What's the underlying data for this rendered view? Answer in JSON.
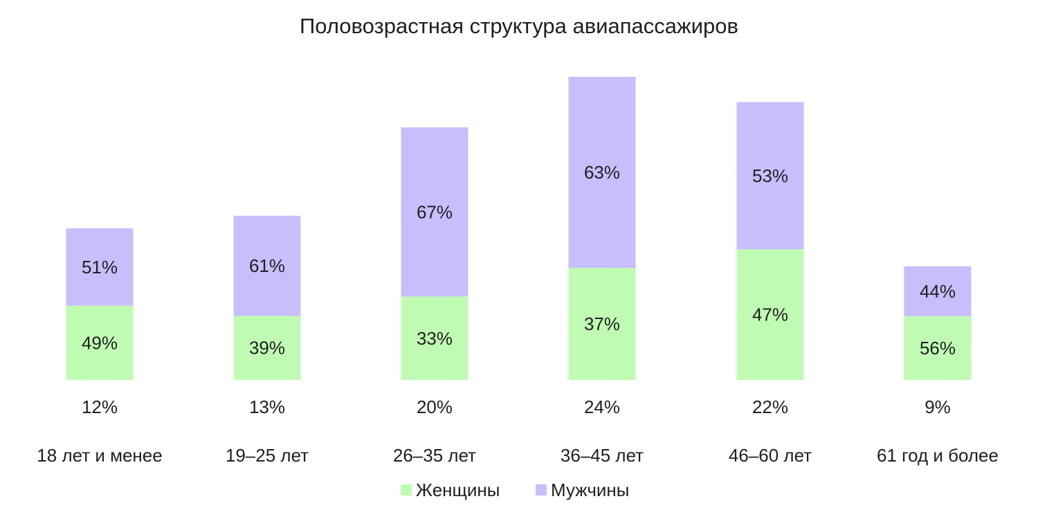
{
  "chart_data": {
    "type": "bar",
    "stacked": true,
    "title": "Половозрастная структура авиапассажиров",
    "xlabel": "",
    "ylabel": "",
    "grid": false,
    "legend_position": "bottom",
    "categories": [
      "18 лет и менее",
      "19–25 лет",
      "26–35 лет",
      "36–45 лет",
      "46–60 лет",
      "61 год и более"
    ],
    "category_share": [
      12,
      13,
      20,
      24,
      22,
      9
    ],
    "category_share_labels": [
      "12%",
      "13%",
      "20%",
      "24%",
      "22%",
      "9%"
    ],
    "series": [
      {
        "name": "Женщины",
        "color": "#c0fbb4",
        "values": [
          49,
          39,
          33,
          37,
          47,
          56
        ],
        "labels": [
          "49%",
          "39%",
          "33%",
          "37%",
          "47%",
          "56%"
        ]
      },
      {
        "name": "Мужчины",
        "color": "#c8befc",
        "values": [
          51,
          61,
          67,
          63,
          53,
          44
        ],
        "labels": [
          "51%",
          "61%",
          "67%",
          "63%",
          "53%",
          "44%"
        ]
      }
    ]
  }
}
